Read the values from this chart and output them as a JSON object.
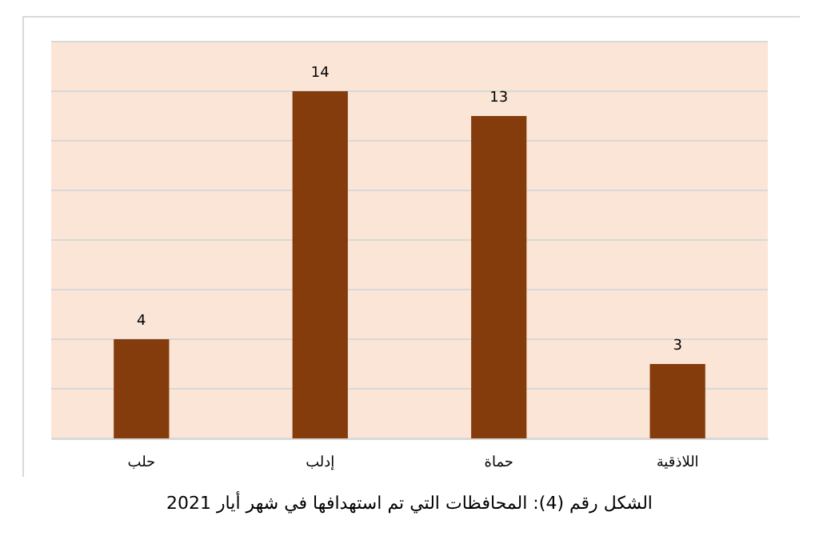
{
  "chart_data": {
    "type": "bar",
    "categories": [
      "حلب",
      "إدلب",
      "حماة",
      "اللاذقية"
    ],
    "values": [
      4,
      14,
      13,
      3
    ],
    "color": "#843c0c",
    "ylim": [
      0,
      16
    ],
    "yticks": [
      {
        "value": 0,
        "label": null
      },
      {
        "value": 2,
        "label": null
      },
      {
        "value": 4,
        "label": null
      },
      {
        "value": 6,
        "label": null
      },
      {
        "value": 8,
        "label": null
      },
      {
        "value": 10,
        "label": null
      },
      {
        "value": 12,
        "label": null
      },
      {
        "value": 14,
        "label": null
      },
      {
        "value": 16,
        "label": null
      }
    ],
    "grid": "y",
    "tick_labels": "x",
    "data_labels": true,
    "annotations": [
      "الشكل رقم (4): المحافظات التي تم استهدافها في شهر أيار 2021"
    ]
  }
}
